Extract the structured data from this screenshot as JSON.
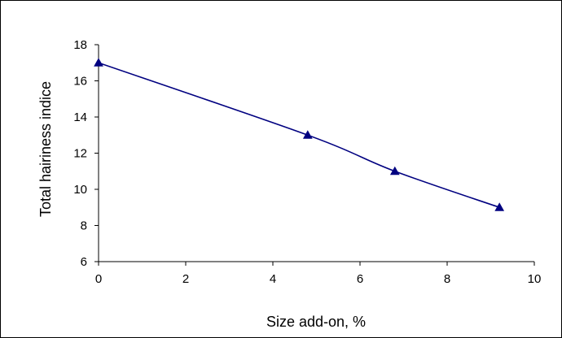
{
  "chart_data": {
    "type": "line",
    "title": "",
    "xlabel": "Size add-on, %",
    "ylabel": "Total hairiness indice",
    "xlim": [
      0,
      10
    ],
    "ylim": [
      6,
      18
    ],
    "x_ticks": [
      0,
      2,
      4,
      6,
      8,
      10
    ],
    "y_ticks": [
      6,
      8,
      10,
      12,
      14,
      16,
      18
    ],
    "grid": false,
    "legend": "none",
    "series": [
      {
        "color": "#000080",
        "marker": "triangle",
        "smooth": true,
        "x": [
          0,
          4.8,
          6.8,
          9.2
        ],
        "y": [
          17,
          13,
          11,
          9
        ]
      }
    ]
  }
}
